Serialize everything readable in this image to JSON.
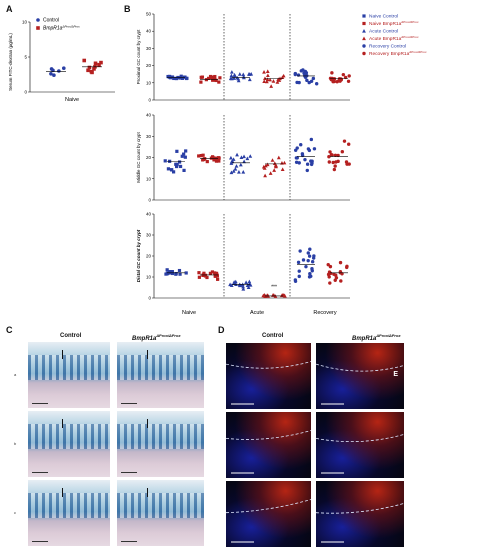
{
  "panels": {
    "a": "A",
    "b": "B",
    "c": "C",
    "d": "D"
  },
  "panel_a": {
    "ylabel": "Serum FITC-dextran (µg/mL)",
    "yticks": [
      "0",
      "5",
      "10"
    ],
    "xlabel": "Naive",
    "legend": [
      {
        "label": "Control",
        "color": "#2a3fa5"
      },
      {
        "label": "BmpR1a",
        "sup": "ΔProx/ΔProx",
        "color": "#b52020"
      }
    ]
  },
  "chart_data": [
    {
      "type": "scatter",
      "panel": "A",
      "ylabel": "Serum FITC-dextran (µg/mL)",
      "ylim": [
        0,
        10
      ],
      "categories": [
        "Naive"
      ],
      "series": [
        {
          "name": "Control",
          "values": [
            3.1,
            2.6,
            3.4,
            2.4,
            3.0,
            3.3
          ],
          "mean": 2.9
        },
        {
          "name": "BmpR1a ΔProx/ΔProx",
          "values": [
            3.3,
            4.5,
            2.8,
            3.9,
            3.1,
            4.1,
            3.6,
            2.9,
            4.2,
            3.5
          ],
          "mean": 3.6
        }
      ]
    },
    {
      "type": "scatter",
      "panel": "B-proximal",
      "ylabel": "Proximal GC count by crypt",
      "ylim": [
        0,
        50
      ],
      "yticks": [
        0,
        10,
        20,
        30,
        40,
        50
      ],
      "groups": [
        "Naive Control",
        "Naive BmpR1a",
        "Acute Control",
        "Acute BmpR1a",
        "Recovery Control",
        "Recovery BmpR1a"
      ],
      "means": [
        13,
        12,
        13,
        12.5,
        14,
        12.5
      ],
      "spreads": [
        1,
        3,
        4,
        5,
        5,
        4
      ]
    },
    {
      "type": "scatter",
      "panel": "B-middle",
      "ylabel": "Middle GC count by crypt",
      "ylim": [
        0,
        40
      ],
      "yticks": [
        0,
        10,
        20,
        30,
        40
      ],
      "groups": [
        "Naive Control",
        "Naive BmpR1a",
        "Acute Control",
        "Acute BmpR1a",
        "Recovery Control",
        "Recovery BmpR1a"
      ],
      "means": [
        18,
        19.5,
        17.5,
        17,
        20.5,
        20.5
      ],
      "spreads": [
        6,
        2,
        6,
        6,
        9,
        9
      ]
    },
    {
      "type": "scatter",
      "panel": "B-distal",
      "ylabel": "Distal GC count by crypt",
      "ylim": [
        0,
        40
      ],
      "yticks": [
        0,
        10,
        20,
        30,
        40
      ],
      "groups": [
        "Naive Control",
        "Naive BmpR1a",
        "Acute Control",
        "Acute BmpR1a",
        "Recovery Control",
        "Recovery BmpR1a"
      ],
      "means": [
        12,
        11,
        6.5,
        1,
        16,
        12
      ],
      "spreads": [
        1.5,
        2.5,
        2.5,
        0.8,
        10,
        6
      ],
      "annotations": [
        {
          "text": "***",
          "group": "Acute BmpR1a"
        }
      ]
    }
  ],
  "panel_b": {
    "xgroups": [
      "Naive",
      "Acute",
      "Recovery"
    ],
    "legend": [
      {
        "label": "Naive Control",
        "color": "#2a3fa5",
        "shape": "square"
      },
      {
        "label": "Naive BmpR1a",
        "sup": "ΔProx/ΔProx",
        "color": "#b52020",
        "shape": "square"
      },
      {
        "label": "Acute Control",
        "color": "#2a3fa5",
        "shape": "triangle"
      },
      {
        "label": "Acute BmpR1a",
        "sup": "ΔProx/ΔProx",
        "color": "#b52020",
        "shape": "triangle"
      },
      {
        "label": "Recovery Control",
        "color": "#2a3fa5",
        "shape": "circle"
      },
      {
        "label": "Recovery BmpR1a",
        "sup": "ΔProx/ΔProx",
        "color": "#b52020",
        "shape": "circle"
      }
    ]
  },
  "panel_c": {
    "col_control": "Control",
    "col_mutant": "BmpR1a",
    "col_mutant_sup": "ΔProx/ΔProx",
    "rows": [
      "a",
      "b",
      "c"
    ]
  },
  "panel_d": {
    "col_control": "Control",
    "col_mutant": "BmpR1a",
    "col_mutant_sup": "ΔProx/ΔProx",
    "label_e": "E"
  }
}
